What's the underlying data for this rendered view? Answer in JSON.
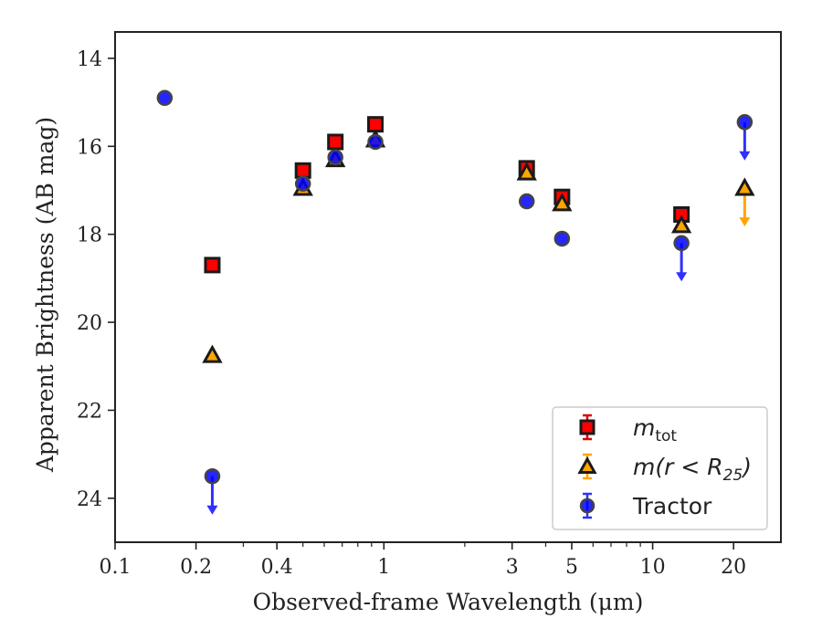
{
  "chart_data": {
    "type": "scatter",
    "xlabel": "Observed-frame Wavelength (μm)",
    "ylabel": "Apparent Brightness (AB mag)",
    "xscale": "log",
    "xlim": [
      0.1,
      30
    ],
    "ylim": [
      25,
      13.4
    ],
    "y_inverted": true,
    "x_ticks": [
      0.1,
      0.2,
      0.4,
      1,
      3,
      5,
      10,
      20
    ],
    "x_tick_labels": [
      "0.1",
      "0.2",
      "0.4",
      "1",
      "3",
      "5",
      "10",
      "20"
    ],
    "y_ticks": [
      14,
      16,
      18,
      20,
      22,
      24
    ],
    "y_tick_labels": [
      "14",
      "16",
      "18",
      "20",
      "22",
      "24"
    ],
    "grid": false,
    "legend_position": "lower-right",
    "series": [
      {
        "name": "m_tot",
        "legend_main": "m",
        "legend_sub": "tot",
        "marker": "square",
        "color": "#ff0000",
        "edge": "#1a1a1a",
        "points": [
          {
            "x": 0.23,
            "y": 18.7
          },
          {
            "x": 0.5,
            "y": 16.55
          },
          {
            "x": 0.66,
            "y": 15.9
          },
          {
            "x": 0.93,
            "y": 15.5
          },
          {
            "x": 3.4,
            "y": 16.5
          },
          {
            "x": 4.6,
            "y": 17.15
          },
          {
            "x": 12.8,
            "y": 17.55
          }
        ]
      },
      {
        "name": "m(r < R25)",
        "legend_main": "m(r < R",
        "legend_sub": "25",
        "legend_tail": ")",
        "marker": "triangle",
        "color": "#ffa500",
        "edge": "#1a1a1a",
        "points": [
          {
            "x": 0.23,
            "y": 20.75
          },
          {
            "x": 0.5,
            "y": 16.95
          },
          {
            "x": 0.66,
            "y": 16.3
          },
          {
            "x": 0.93,
            "y": 15.85
          },
          {
            "x": 3.4,
            "y": 16.6
          },
          {
            "x": 4.6,
            "y": 17.3
          },
          {
            "x": 12.8,
            "y": 17.8
          },
          {
            "x": 22,
            "y": 16.95,
            "upper_limit": true
          }
        ]
      },
      {
        "name": "Tractor",
        "marker": "circle",
        "color": "#0000ff",
        "edge": "#444444",
        "points": [
          {
            "x": 0.153,
            "y": 14.9
          },
          {
            "x": 0.23,
            "y": 23.5,
            "upper_limit": true
          },
          {
            "x": 0.5,
            "y": 16.85
          },
          {
            "x": 0.66,
            "y": 16.25
          },
          {
            "x": 0.93,
            "y": 15.9
          },
          {
            "x": 3.4,
            "y": 17.25
          },
          {
            "x": 4.6,
            "y": 18.1
          },
          {
            "x": 12.8,
            "y": 18.2,
            "upper_limit": true
          },
          {
            "x": 22,
            "y": 15.45,
            "upper_limit": true
          }
        ]
      }
    ]
  },
  "legend": {
    "entries": [
      {
        "label_main": "m",
        "label_sub": "tot",
        "label_tail": ""
      },
      {
        "label_main": "m(r < R",
        "label_sub": "25",
        "label_tail": ")"
      },
      {
        "label_main": "Tractor",
        "label_sub": "",
        "label_tail": ""
      }
    ]
  }
}
